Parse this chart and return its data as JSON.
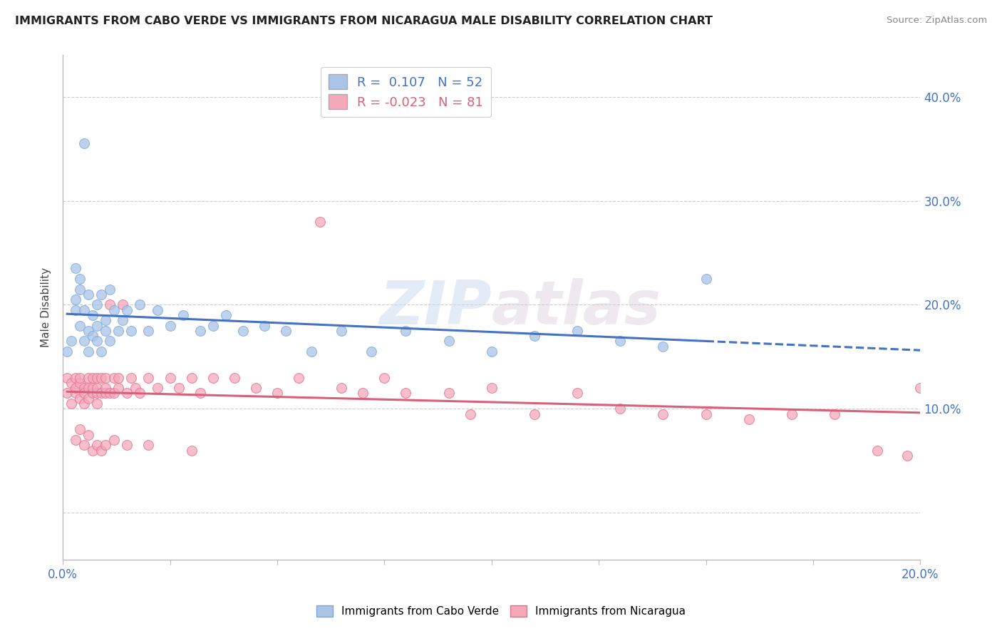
{
  "title": "IMMIGRANTS FROM CABO VERDE VS IMMIGRANTS FROM NICARAGUA MALE DISABILITY CORRELATION CHART",
  "source": "Source: ZipAtlas.com",
  "ylabel": "Male Disability",
  "r_cabo": 0.107,
  "n_cabo": 52,
  "r_nica": -0.023,
  "n_nica": 81,
  "color_cabo": "#aac4e8",
  "color_cabo_edge": "#7aa8d8",
  "color_cabo_line": "#4472c4",
  "color_nica": "#f5a8ba",
  "color_nica_edge": "#e07090",
  "color_nica_line": "#d9607a",
  "watermark_color": "#d0dff0",
  "cabo_x": [
    0.001,
    0.002,
    0.003,
    0.003,
    0.004,
    0.004,
    0.005,
    0.005,
    0.006,
    0.006,
    0.006,
    0.007,
    0.007,
    0.008,
    0.008,
    0.008,
    0.009,
    0.009,
    0.01,
    0.01,
    0.011,
    0.011,
    0.012,
    0.013,
    0.014,
    0.015,
    0.016,
    0.018,
    0.02,
    0.022,
    0.025,
    0.028,
    0.032,
    0.035,
    0.038,
    0.042,
    0.047,
    0.052,
    0.058,
    0.065,
    0.072,
    0.08,
    0.09,
    0.1,
    0.11,
    0.12,
    0.13,
    0.14,
    0.15,
    0.003,
    0.004,
    0.005
  ],
  "cabo_y": [
    0.155,
    0.165,
    0.195,
    0.205,
    0.18,
    0.215,
    0.165,
    0.195,
    0.175,
    0.155,
    0.21,
    0.17,
    0.19,
    0.165,
    0.2,
    0.18,
    0.155,
    0.21,
    0.185,
    0.175,
    0.165,
    0.215,
    0.195,
    0.175,
    0.185,
    0.195,
    0.175,
    0.2,
    0.175,
    0.195,
    0.18,
    0.19,
    0.175,
    0.18,
    0.19,
    0.175,
    0.18,
    0.175,
    0.155,
    0.175,
    0.155,
    0.175,
    0.165,
    0.155,
    0.17,
    0.175,
    0.165,
    0.16,
    0.225,
    0.235,
    0.225,
    0.355
  ],
  "nica_x": [
    0.001,
    0.001,
    0.002,
    0.002,
    0.003,
    0.003,
    0.003,
    0.004,
    0.004,
    0.004,
    0.005,
    0.005,
    0.005,
    0.006,
    0.006,
    0.006,
    0.007,
    0.007,
    0.007,
    0.008,
    0.008,
    0.008,
    0.008,
    0.009,
    0.009,
    0.01,
    0.01,
    0.01,
    0.011,
    0.011,
    0.012,
    0.012,
    0.013,
    0.013,
    0.014,
    0.015,
    0.016,
    0.017,
    0.018,
    0.02,
    0.022,
    0.025,
    0.027,
    0.03,
    0.032,
    0.035,
    0.04,
    0.045,
    0.05,
    0.055,
    0.06,
    0.065,
    0.07,
    0.075,
    0.08,
    0.09,
    0.095,
    0.1,
    0.11,
    0.12,
    0.13,
    0.14,
    0.15,
    0.16,
    0.17,
    0.18,
    0.19,
    0.2,
    0.003,
    0.004,
    0.005,
    0.006,
    0.007,
    0.008,
    0.009,
    0.01,
    0.012,
    0.015,
    0.02,
    0.03,
    0.197
  ],
  "nica_y": [
    0.13,
    0.115,
    0.125,
    0.105,
    0.13,
    0.115,
    0.12,
    0.125,
    0.11,
    0.13,
    0.12,
    0.105,
    0.115,
    0.13,
    0.12,
    0.11,
    0.13,
    0.115,
    0.12,
    0.13,
    0.115,
    0.105,
    0.12,
    0.13,
    0.115,
    0.13,
    0.115,
    0.12,
    0.115,
    0.2,
    0.13,
    0.115,
    0.12,
    0.13,
    0.2,
    0.115,
    0.13,
    0.12,
    0.115,
    0.13,
    0.12,
    0.13,
    0.12,
    0.13,
    0.115,
    0.13,
    0.13,
    0.12,
    0.115,
    0.13,
    0.28,
    0.12,
    0.115,
    0.13,
    0.115,
    0.115,
    0.095,
    0.12,
    0.095,
    0.115,
    0.1,
    0.095,
    0.095,
    0.09,
    0.095,
    0.095,
    0.06,
    0.12,
    0.07,
    0.08,
    0.065,
    0.075,
    0.06,
    0.065,
    0.06,
    0.065,
    0.07,
    0.065,
    0.065,
    0.06,
    0.055
  ],
  "xlim": [
    0.0,
    0.2
  ],
  "ylim": [
    -0.045,
    0.44
  ],
  "yticks": [
    0.0,
    0.1,
    0.2,
    0.3,
    0.4
  ],
  "ytick_labels": [
    "",
    "10.0%",
    "20.0%",
    "30.0%",
    "40.0%"
  ],
  "xtick_show": [
    0.0,
    0.2
  ],
  "xtick_show_labels": [
    "0.0%",
    "20.0%"
  ],
  "xticks_minor": [
    0.025,
    0.05,
    0.075,
    0.1,
    0.125,
    0.15,
    0.175
  ],
  "background_color": "#ffffff",
  "grid_color": "#cccccc",
  "cabo_trend_x_max": 0.15,
  "nica_trend_x_max": 0.2
}
